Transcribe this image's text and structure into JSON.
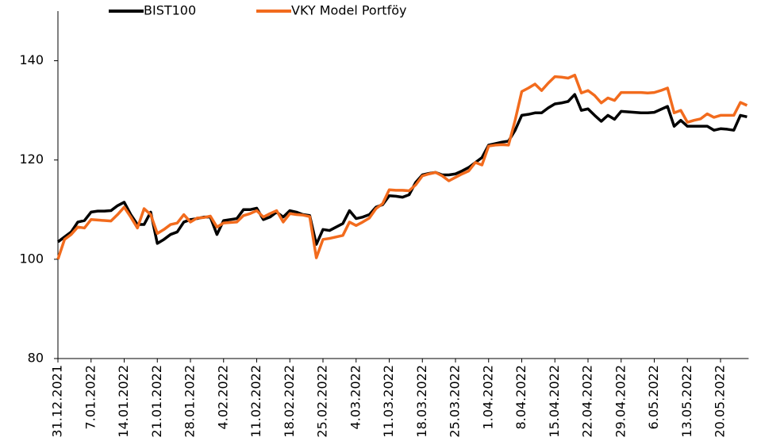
{
  "chart_data": {
    "type": "line",
    "categories": [
      "31.12.2021",
      null,
      null,
      null,
      null,
      "7.01.2022",
      null,
      null,
      null,
      null,
      "14.01.2022",
      null,
      null,
      null,
      null,
      "21.01.2022",
      null,
      null,
      null,
      null,
      "28.01.2022",
      null,
      null,
      null,
      null,
      "4.02.2022",
      null,
      null,
      null,
      null,
      "11.02.2022",
      null,
      null,
      null,
      null,
      "18.02.2022",
      null,
      null,
      null,
      null,
      "25.02.2022",
      null,
      null,
      null,
      null,
      "4.03.2022",
      null,
      null,
      null,
      null,
      "11.03.2022",
      null,
      null,
      null,
      null,
      "18.03.2022",
      null,
      null,
      null,
      null,
      "25.03.2022",
      null,
      null,
      null,
      null,
      "1.04.2022",
      null,
      null,
      null,
      null,
      "8.04.2022",
      null,
      null,
      null,
      null,
      "15.04.2022",
      null,
      null,
      null,
      null,
      "22.04.2022",
      null,
      null,
      null,
      null,
      "29.04.2022",
      null,
      null,
      null,
      null,
      "6.05.2022",
      null,
      null,
      null,
      null,
      "13.05.2022",
      null,
      null,
      null,
      null,
      "20.05.2022",
      null,
      null,
      null,
      null
    ],
    "series": [
      {
        "name": "BIST100",
        "color": "#000000",
        "values": [
          103.5,
          104.5,
          105.5,
          107.5,
          107.8,
          109.5,
          109.7,
          109.7,
          109.8,
          110.8,
          111.5,
          109,
          107,
          107,
          109.5,
          103.2,
          104,
          105,
          105.5,
          107.5,
          108,
          108.2,
          108.5,
          108.5,
          105,
          107.8,
          108,
          108.2,
          110,
          110,
          110.3,
          108,
          108.5,
          109.5,
          108.5,
          109.8,
          109.5,
          109,
          108.8,
          103,
          106,
          105.8,
          106.5,
          107.2,
          109.8,
          108.2,
          108.5,
          109,
          110.5,
          111,
          112.8,
          112.7,
          112.5,
          113,
          115.5,
          117,
          117.3,
          117.5,
          117,
          117,
          117.2,
          117.8,
          118.5,
          119.5,
          120.5,
          123,
          123.3,
          123.6,
          123.8,
          126,
          129,
          129.2,
          129.5,
          129.5,
          130.5,
          131.3,
          131.5,
          131.8,
          133.2,
          130,
          130.3,
          129,
          127.8,
          129,
          128.2,
          129.8,
          129.7,
          129.6,
          129.5,
          129.5,
          129.6,
          130.2,
          130.8,
          126.8,
          128,
          126.8,
          126.8,
          126.8,
          126.8,
          126,
          126.3,
          126.2,
          126,
          129,
          128.7
        ]
      },
      {
        "name": "VKY Model Portföy",
        "color": "#f26b1d",
        "values": [
          100,
          104,
          105,
          106.5,
          106.3,
          108,
          107.9,
          107.8,
          107.7,
          109,
          110.5,
          108.5,
          106.3,
          110.2,
          109,
          105.2,
          106,
          107,
          107.3,
          109,
          107.5,
          108.3,
          108.4,
          108.7,
          106.5,
          107.3,
          107.4,
          107.5,
          108.8,
          109.2,
          109.8,
          108.5,
          109.2,
          109.8,
          107.5,
          109.2,
          109,
          108.9,
          108.6,
          100.3,
          104,
          104.2,
          104.5,
          104.8,
          107.5,
          106.8,
          107.5,
          108.3,
          110.2,
          111.2,
          114,
          113.9,
          113.9,
          113.8,
          115,
          116.8,
          117.2,
          117.5,
          116.8,
          115.8,
          116.5,
          117.2,
          117.8,
          119.5,
          119,
          122.8,
          123,
          123.1,
          123,
          128,
          133.8,
          134.5,
          135.3,
          134,
          135.5,
          136.8,
          136.7,
          136.5,
          137.1,
          133.5,
          134,
          133,
          131.5,
          132.5,
          132,
          133.6,
          133.6,
          133.6,
          133.6,
          133.5,
          133.6,
          134,
          134.5,
          129.5,
          130,
          127.6,
          128,
          128.3,
          129.3,
          128.6,
          129,
          129,
          129,
          131.6,
          131
        ]
      }
    ],
    "ylim": [
      80,
      150
    ],
    "yticks": [
      80,
      100,
      120,
      140
    ],
    "grid": false
  }
}
